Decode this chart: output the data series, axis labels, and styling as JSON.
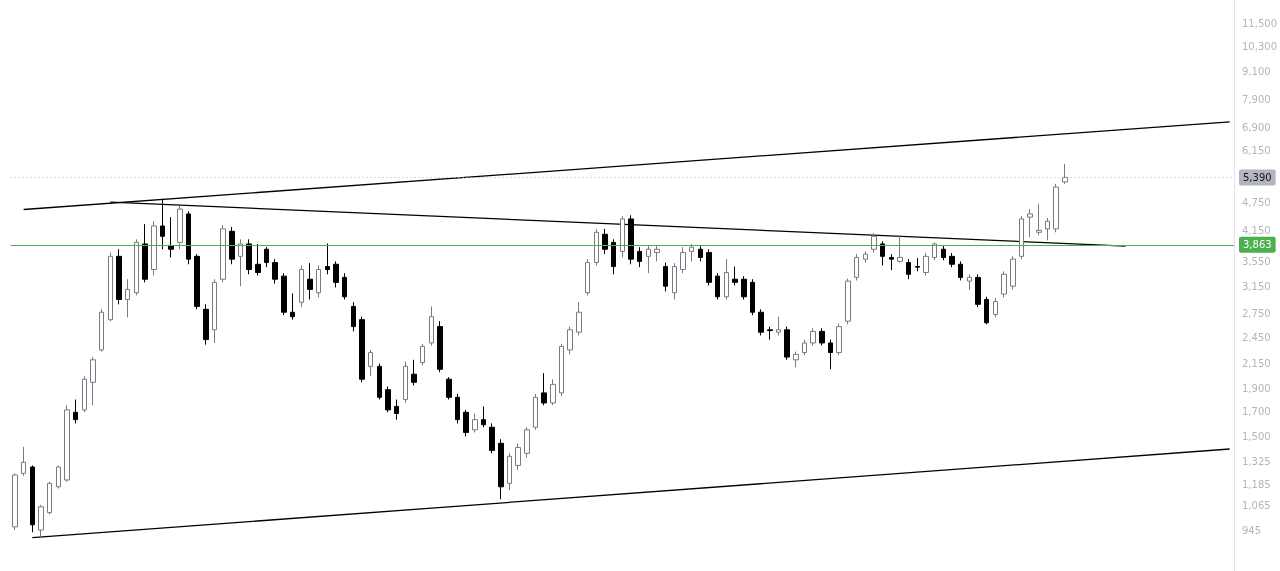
{
  "chart_data": {
    "type": "candlestick",
    "log": true,
    "tick_labels": "y",
    "categories": [
      null,
      null,
      null,
      null,
      null,
      null,
      null,
      null,
      null,
      null,
      null,
      null,
      null,
      null,
      null,
      null,
      null,
      null,
      null,
      null,
      null,
      null,
      null,
      null,
      null,
      null,
      null,
      null,
      null,
      null,
      null,
      null,
      null,
      null,
      null,
      null,
      null,
      null,
      null,
      null,
      null,
      null,
      null,
      null,
      null,
      null,
      null,
      null,
      null,
      null,
      null,
      null,
      null,
      null,
      null,
      null,
      null,
      null,
      null,
      null,
      null,
      null,
      null,
      null,
      null,
      null,
      null,
      null,
      null,
      null,
      null,
      null,
      null,
      null,
      null,
      null,
      null,
      null,
      null,
      null,
      null,
      null,
      null,
      null,
      null,
      null,
      null,
      null,
      null,
      null,
      null,
      null,
      null,
      null,
      null,
      null,
      null,
      null,
      null,
      null,
      null,
      null,
      null,
      null,
      null,
      null,
      null,
      null,
      null,
      null,
      null,
      null,
      null,
      null,
      null,
      null,
      null,
      null,
      null,
      null,
      null,
      null,
      null,
      null,
      null,
      null,
      null,
      null,
      null,
      null,
      null,
      null,
      null,
      null,
      null,
      null,
      null,
      null,
      null,
      null,
      null
    ],
    "ylim": [
      772,
      12940
    ],
    "yticks": [
      945,
      {
        "value": 1065,
        "label": "1,065"
      },
      {
        "value": 1185,
        "label": "1,185"
      },
      {
        "value": 1325,
        "label": "1,325"
      },
      {
        "value": 1500,
        "label": "1,500"
      },
      {
        "value": 1700,
        "label": "1,700"
      },
      {
        "value": 1900,
        "label": "1,900"
      },
      {
        "value": 2150,
        "label": "2,150"
      },
      {
        "value": 2450,
        "label": "2,450"
      },
      {
        "value": 2750,
        "label": "2,750"
      },
      {
        "value": 3150,
        "label": "3,150"
      },
      {
        "value": 3550,
        "label": "3,550"
      },
      {
        "value": 4150,
        "label": "4,150"
      },
      {
        "value": 4750,
        "label": "4,750"
      },
      {
        "value": 6150,
        "label": "6,150"
      },
      {
        "value": 6900,
        "label": "6,900"
      },
      {
        "value": 7900,
        "label": "7,900"
      },
      {
        "value": 9100,
        "label": "9,100"
      },
      {
        "value": 10300,
        "label": "10,300"
      },
      {
        "value": 11500,
        "label": "11,500"
      }
    ],
    "series": [
      {
        "colors": [
          "#ffffff",
          "#ffffff",
          "#000000",
          "#ffffff",
          "#ffffff",
          "#ffffff",
          "#ffffff",
          "#000000",
          "#ffffff",
          "#ffffff",
          "#ffffff",
          "#ffffff",
          "#000000",
          "#ffffff",
          "#ffffff",
          "#000000",
          "#ffffff",
          "#000000",
          "#000000",
          "#ffffff",
          "#000000",
          "#000000",
          "#000000",
          "#ffffff",
          "#ffffff",
          "#000000",
          "#ffffff",
          "#000000",
          "#000000",
          "#000000",
          "#000000",
          "#000000",
          "#000000",
          "#ffffff",
          "#000000",
          "#ffffff",
          "#000000",
          "#000000",
          "#000000",
          "#000000",
          "#000000",
          "#ffffff",
          "#000000",
          "#000000",
          "#000000",
          "#ffffff",
          "#000000",
          "#ffffff",
          "#ffffff",
          "#000000",
          "#000000",
          "#000000",
          "#000000",
          "#ffffff",
          "#000000",
          "#000000",
          "#000000",
          "#ffffff",
          "#ffffff",
          "#ffffff",
          "#ffffff",
          "#000000",
          "#ffffff",
          "#ffffff",
          "#ffffff",
          "#ffffff",
          "#ffffff",
          "#ffffff",
          "#000000",
          "#000000",
          "#ffffff",
          "#000000",
          "#000000",
          "#ffffff",
          "#ffffff",
          "#000000",
          "#ffffff",
          "#ffffff",
          "#ffffff",
          "#000000",
          "#000000",
          "#000000",
          "#ffffff",
          "#000000",
          "#000000",
          "#000000",
          "#000000",
          "#000000",
          "#ffffff",
          "#000000",
          "#ffffff",
          "#ffffff",
          "#ffffff",
          "#000000",
          "#000000",
          "#ffffff",
          "#ffffff",
          "#ffffff",
          "#ffffff",
          "#ffffff",
          "#000000",
          "#000000",
          "#ffffff",
          "#000000",
          "#000000",
          "#ffffff",
          "#ffffff",
          "#000000",
          "#000000",
          "#000000",
          "#ffffff",
          "#000000",
          "#000000",
          "#ffffff",
          "#ffffff",
          "#ffffff",
          "#ffffff",
          "#ffffff",
          "#ffffff",
          "#ffffff",
          "#ffffff",
          "#ffffff",
          null,
          null,
          null,
          null,
          null,
          null,
          null,
          null,
          null,
          null,
          null,
          null,
          null,
          null,
          null,
          null,
          null,
          null,
          null
        ],
        "ohlc": [
          [
            960,
            1250,
            945,
            1240
          ],
          [
            1250,
            1425,
            1235,
            1320
          ],
          [
            1290,
            1300,
            935,
            970
          ],
          [
            945,
            1070,
            915,
            1060
          ],
          [
            1030,
            1200,
            1020,
            1190
          ],
          [
            1170,
            1300,
            1160,
            1290
          ],
          [
            1210,
            1750,
            1200,
            1710
          ],
          [
            1690,
            1800,
            1600,
            1630
          ],
          [
            1710,
            2020,
            1690,
            1990
          ],
          [
            1960,
            2220,
            1750,
            2190
          ],
          [
            2300,
            2810,
            2280,
            2770
          ],
          [
            2670,
            3720,
            2650,
            3650
          ],
          [
            3650,
            3780,
            2880,
            2950
          ],
          [
            2950,
            3260,
            2700,
            3100
          ],
          [
            3050,
            3970,
            3010,
            3910
          ],
          [
            3880,
            4280,
            3210,
            3260
          ],
          [
            3420,
            4340,
            3320,
            4240
          ],
          [
            4240,
            4850,
            3780,
            4030
          ],
          [
            3840,
            4430,
            3630,
            3780
          ],
          [
            3910,
            4680,
            3780,
            4610
          ],
          [
            4500,
            4560,
            3510,
            3600
          ],
          [
            3650,
            3690,
            2810,
            2850
          ],
          [
            2810,
            2880,
            2360,
            2420
          ],
          [
            2540,
            3260,
            2380,
            3210
          ],
          [
            3260,
            4260,
            3210,
            4180
          ],
          [
            4130,
            4220,
            3510,
            3600
          ],
          [
            3650,
            3970,
            3150,
            3880
          ],
          [
            3880,
            3970,
            3340,
            3420
          ],
          [
            3510,
            3880,
            3320,
            3370
          ],
          [
            3780,
            3820,
            3460,
            3540
          ],
          [
            3540,
            3600,
            3190,
            3260
          ],
          [
            3310,
            3360,
            2730,
            2770
          ],
          [
            2770,
            3040,
            2670,
            2710
          ],
          [
            2910,
            3490,
            2840,
            3420
          ],
          [
            3260,
            3530,
            2950,
            3100
          ],
          [
            3050,
            3490,
            2980,
            3420
          ],
          [
            3470,
            3890,
            3340,
            3420
          ],
          [
            3510,
            3560,
            3130,
            3210
          ],
          [
            3290,
            3360,
            2950,
            2990
          ],
          [
            2850,
            2910,
            2520,
            2580
          ],
          [
            2670,
            2710,
            1960,
            1990
          ],
          [
            2120,
            2300,
            2020,
            2270
          ],
          [
            2120,
            2150,
            1800,
            1820
          ],
          [
            1890,
            1920,
            1690,
            1710
          ],
          [
            1740,
            1800,
            1630,
            1680
          ],
          [
            1800,
            2170,
            1770,
            2120
          ],
          [
            2040,
            2190,
            1930,
            1960
          ],
          [
            2160,
            2370,
            2130,
            2340
          ],
          [
            2380,
            2850,
            2350,
            2710
          ],
          [
            2580,
            2650,
            2060,
            2090
          ],
          [
            1990,
            2010,
            1800,
            1820
          ],
          [
            1820,
            1850,
            1600,
            1630
          ],
          [
            1690,
            1710,
            1500,
            1530
          ],
          [
            1550,
            1680,
            1530,
            1630
          ],
          [
            1630,
            1740,
            1570,
            1590
          ],
          [
            1570,
            1600,
            1380,
            1400
          ],
          [
            1450,
            1480,
            1100,
            1170
          ],
          [
            1190,
            1380,
            1150,
            1360
          ],
          [
            1300,
            1450,
            1270,
            1420
          ],
          [
            1380,
            1570,
            1350,
            1550
          ],
          [
            1570,
            1850,
            1550,
            1820
          ],
          [
            1860,
            2050,
            1750,
            1770
          ],
          [
            1770,
            1990,
            1750,
            1940
          ],
          [
            1860,
            2370,
            1830,
            2340
          ],
          [
            2300,
            2580,
            2250,
            2540
          ],
          [
            2510,
            2910,
            2470,
            2770
          ],
          [
            3050,
            3600,
            3010,
            3540
          ],
          [
            3540,
            4180,
            3490,
            4110
          ],
          [
            4070,
            4180,
            3690,
            3780
          ],
          [
            3910,
            3970,
            3340,
            3470
          ],
          [
            3740,
            4450,
            3630,
            4390
          ],
          [
            4390,
            4470,
            3510,
            3600
          ],
          [
            3740,
            3820,
            3460,
            3560
          ],
          [
            3650,
            3860,
            3360,
            3780
          ],
          [
            3720,
            3860,
            3560,
            3780
          ],
          [
            3470,
            3540,
            3070,
            3150
          ],
          [
            3050,
            3530,
            2950,
            3470
          ],
          [
            3420,
            3820,
            3360,
            3720
          ],
          [
            3740,
            3880,
            3560,
            3820
          ],
          [
            3780,
            3860,
            3560,
            3630
          ],
          [
            3720,
            3780,
            3160,
            3210
          ],
          [
            3310,
            3360,
            2950,
            2990
          ],
          [
            2990,
            3600,
            2950,
            3370
          ],
          [
            3260,
            3470,
            3160,
            3210
          ],
          [
            3260,
            3310,
            2950,
            2990
          ],
          [
            3210,
            3260,
            2730,
            2770
          ],
          [
            2770,
            2810,
            2470,
            2510
          ],
          [
            2540,
            2580,
            2420,
            2530
          ],
          [
            2510,
            2710,
            2470,
            2540
          ],
          [
            2540,
            2580,
            2190,
            2220
          ],
          [
            2190,
            2280,
            2110,
            2250
          ],
          [
            2270,
            2420,
            2240,
            2380
          ],
          [
            2380,
            2560,
            2350,
            2520
          ],
          [
            2520,
            2560,
            2350,
            2380
          ],
          [
            2380,
            2420,
            2090,
            2270
          ],
          [
            2270,
            2620,
            2240,
            2580
          ],
          [
            2650,
            3270,
            2610,
            3230
          ],
          [
            3290,
            3690,
            3240,
            3630
          ],
          [
            3600,
            3740,
            3540,
            3690
          ],
          [
            3780,
            4090,
            3720,
            4030
          ],
          [
            3880,
            3930,
            3490,
            3650
          ],
          [
            3630,
            3690,
            3410,
            3600
          ],
          [
            3560,
            4050,
            3540,
            3630
          ],
          [
            3540,
            3600,
            3260,
            3340
          ],
          [
            3470,
            3620,
            3390,
            3460
          ],
          [
            3370,
            3710,
            3320,
            3650
          ],
          [
            3630,
            3910,
            3580,
            3880
          ],
          [
            3780,
            3840,
            3580,
            3630
          ],
          [
            3650,
            3710,
            3460,
            3510
          ],
          [
            3510,
            3560,
            3240,
            3290
          ],
          [
            3230,
            3340,
            3090,
            3290
          ],
          [
            3290,
            3340,
            2840,
            2880
          ],
          [
            2950,
            2990,
            2610,
            2630
          ],
          [
            2740,
            2970,
            2700,
            2920
          ],
          [
            3030,
            3390,
            2980,
            3340
          ],
          [
            3150,
            3650,
            3100,
            3600
          ],
          [
            3650,
            4450,
            3600,
            4390
          ],
          [
            4430,
            4610,
            4010,
            4500
          ],
          [
            4110,
            4730,
            4050,
            4150
          ],
          [
            4180,
            4410,
            3950,
            4340
          ],
          [
            4180,
            5220,
            4110,
            5140
          ],
          [
            5270,
            5760,
            5220,
            5390
          ],
          null,
          null,
          null,
          null,
          null,
          null,
          null,
          null,
          null,
          null,
          null,
          null,
          null,
          null,
          null,
          null,
          null,
          null,
          null
        ]
      },
      {
        "type": "line",
        "color": "#000000",
        "values": [
          null,
          4600,
          null,
          null,
          null,
          null,
          null,
          null,
          null,
          null,
          null,
          null,
          null,
          null,
          null,
          null,
          null,
          null,
          null,
          null,
          null,
          null,
          null,
          null,
          null,
          null,
          null,
          null,
          null,
          null,
          null,
          null,
          null,
          null,
          null,
          null,
          null,
          null,
          null,
          null,
          null,
          null,
          null,
          null,
          null,
          null,
          null,
          null,
          null,
          null,
          null,
          null,
          null,
          null,
          null,
          null,
          null,
          null,
          null,
          null,
          null,
          null,
          null,
          null,
          null,
          null,
          null,
          null,
          null,
          null,
          null,
          null,
          null,
          null,
          null,
          null,
          null,
          null,
          null,
          null,
          null,
          null,
          null,
          null,
          null,
          null,
          null,
          null,
          null,
          null,
          null,
          null,
          null,
          null,
          null,
          null,
          null,
          null,
          null,
          null,
          null,
          null,
          null,
          null,
          null,
          null,
          null,
          null,
          null,
          null,
          null,
          null,
          null,
          null,
          null,
          null,
          null,
          null,
          null,
          null,
          null,
          null,
          null,
          null,
          null,
          null,
          null,
          null,
          null,
          null,
          null,
          null,
          null,
          null,
          null,
          null,
          null,
          null,
          null,
          null,
          7090
        ]
      },
      {
        "type": "line",
        "color": "#000000",
        "values": [
          null,
          null,
          910,
          null,
          null,
          null,
          null,
          null,
          null,
          null,
          null,
          null,
          null,
          null,
          null,
          null,
          null,
          null,
          null,
          null,
          null,
          null,
          null,
          null,
          null,
          null,
          null,
          null,
          null,
          null,
          null,
          null,
          null,
          null,
          null,
          null,
          null,
          null,
          null,
          null,
          null,
          null,
          null,
          null,
          null,
          null,
          null,
          null,
          null,
          null,
          null,
          null,
          null,
          null,
          null,
          null,
          null,
          null,
          null,
          null,
          null,
          null,
          null,
          null,
          null,
          null,
          null,
          null,
          null,
          null,
          null,
          null,
          null,
          null,
          null,
          null,
          null,
          null,
          null,
          null,
          null,
          null,
          null,
          null,
          null,
          null,
          null,
          null,
          null,
          null,
          null,
          null,
          null,
          null,
          null,
          null,
          null,
          null,
          null,
          null,
          null,
          null,
          null,
          null,
          null,
          null,
          null,
          null,
          null,
          null,
          null,
          null,
          null,
          null,
          null,
          null,
          null,
          null,
          null,
          null,
          null,
          null,
          null,
          null,
          null,
          null,
          null,
          null,
          null,
          null,
          null,
          null,
          null,
          null,
          null,
          null,
          null,
          null,
          null,
          null,
          1410
        ]
      },
      {
        "type": "line",
        "color": "#000000",
        "values": [
          null,
          null,
          null,
          null,
          null,
          null,
          null,
          null,
          null,
          null,
          null,
          4770,
          null,
          null,
          null,
          null,
          null,
          null,
          null,
          null,
          null,
          null,
          null,
          null,
          null,
          null,
          null,
          null,
          null,
          null,
          null,
          null,
          null,
          null,
          null,
          null,
          null,
          null,
          null,
          null,
          null,
          null,
          null,
          null,
          null,
          null,
          null,
          null,
          null,
          null,
          null,
          null,
          null,
          null,
          null,
          null,
          null,
          null,
          null,
          null,
          null,
          null,
          null,
          null,
          null,
          null,
          null,
          null,
          null,
          null,
          null,
          null,
          null,
          null,
          null,
          null,
          null,
          null,
          null,
          null,
          null,
          null,
          null,
          null,
          null,
          null,
          null,
          null,
          null,
          null,
          null,
          null,
          null,
          null,
          null,
          null,
          null,
          null,
          null,
          null,
          null,
          null,
          null,
          null,
          null,
          null,
          null,
          null,
          null,
          null,
          null,
          null,
          null,
          null,
          null,
          null,
          null,
          null,
          null,
          null,
          null,
          null,
          null,
          null,
          null,
          null,
          null,
          null,
          3840,
          null,
          null,
          null,
          null,
          null,
          null,
          null,
          null,
          null,
          null,
          null,
          null
        ]
      }
    ],
    "ref_lines": [
      {
        "axis": "y",
        "value": 3863,
        "label": "3,863",
        "color": "#4caf50",
        "line_style": "solid"
      },
      {
        "axis": "y",
        "value": 5390,
        "label": "5,390",
        "color": "#b2b5be",
        "line_style": "dotted"
      }
    ]
  }
}
